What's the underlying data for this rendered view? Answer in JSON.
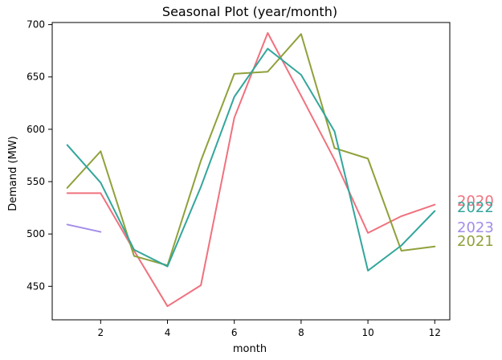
{
  "chart_data": {
    "type": "line",
    "title": "Seasonal Plot (year/month)",
    "xlabel": "month",
    "ylabel": "Demand (MW)",
    "xlim": [
      0.55,
      12.45
    ],
    "ylim": [
      418,
      702
    ],
    "x_ticks": [
      2,
      4,
      6,
      8,
      10,
      12
    ],
    "y_ticks": [
      450,
      500,
      550,
      600,
      650,
      700
    ],
    "grid": false,
    "legend": "series labels at right end of lines",
    "series": [
      {
        "name": "2020",
        "color": "#f0717e",
        "x": [
          1,
          2,
          3,
          4,
          5,
          6,
          7,
          8,
          9,
          10,
          11,
          12
        ],
        "values": [
          539,
          539,
          484,
          431,
          451,
          611,
          692,
          632,
          571,
          501,
          517,
          528
        ]
      },
      {
        "name": "2021",
        "color": "#8fa13a",
        "x": [
          1,
          2,
          3,
          4,
          5,
          6,
          7,
          8,
          9,
          10,
          11,
          12
        ],
        "values": [
          544,
          579,
          479,
          470,
          570,
          653,
          655,
          691,
          582,
          572,
          484,
          488
        ]
      },
      {
        "name": "2022",
        "color": "#33a69b",
        "x": [
          1,
          2,
          3,
          4,
          5,
          6,
          7,
          8,
          9,
          10,
          11,
          12
        ],
        "values": [
          585,
          549,
          485,
          469,
          545,
          631,
          677,
          652,
          598,
          465,
          489,
          522
        ]
      },
      {
        "name": "2023",
        "color": "#a38de9",
        "x": [
          1,
          2
        ],
        "values": [
          509,
          502
        ]
      }
    ]
  }
}
